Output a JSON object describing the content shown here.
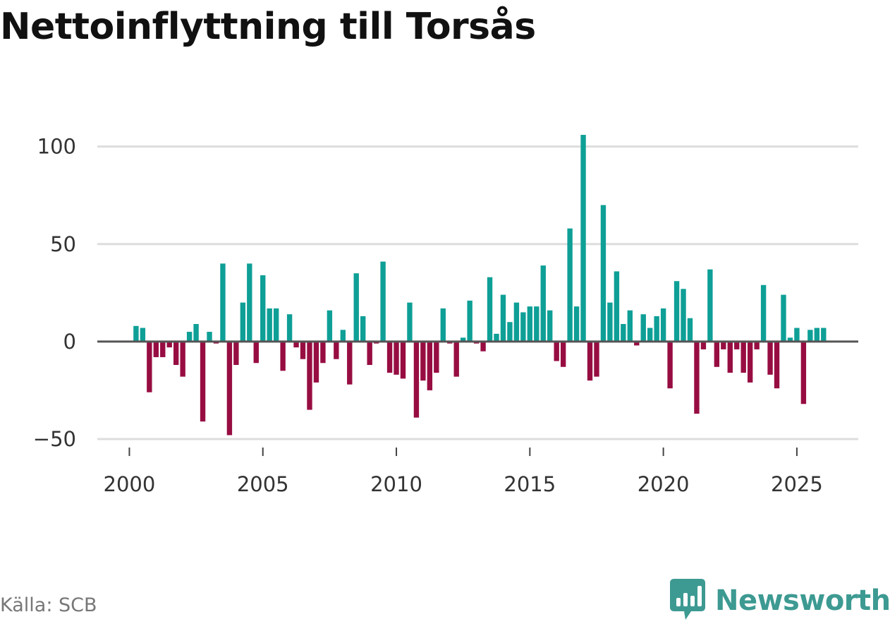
{
  "title": "Nettoinflyttning till Torsås",
  "source": "Källa: SCB",
  "brand": {
    "name": "Newsworthy",
    "icon": "newsworthy-logo-icon"
  },
  "colors": {
    "positive": "#0e9f96",
    "negative": "#970d42",
    "grid": "#dddddd",
    "zero": "#555555",
    "brand": "#3d9a92"
  },
  "chart_data": {
    "type": "bar",
    "title": "Nettoinflyttning till Torsås",
    "xlabel": "",
    "ylabel": "",
    "x_ticks": [
      2000,
      2005,
      2010,
      2015,
      2020,
      2025
    ],
    "y_ticks": [
      100,
      50,
      0,
      -50
    ],
    "y_tick_labels": [
      "100",
      "50",
      "0",
      "−50"
    ],
    "ylim": [
      -50,
      110
    ],
    "xlim": [
      1998.8,
      2027.3
    ],
    "x_start": 2000.25,
    "x_step": 0.25,
    "grid": true,
    "values": [
      8,
      7,
      -26,
      -8,
      -8,
      -3,
      -12,
      -18,
      5,
      9,
      -41,
      5,
      -1,
      40,
      -48,
      -12,
      20,
      40,
      -11,
      34,
      17,
      17,
      -15,
      14,
      -3,
      -9,
      -35,
      -21,
      -11,
      16,
      -9,
      6,
      -22,
      35,
      13,
      -12,
      -1,
      41,
      -16,
      -17,
      -19,
      20,
      -39,
      -20,
      -25,
      -16,
      17,
      -1,
      -18,
      2,
      21,
      -1,
      -5,
      33,
      4,
      24,
      10,
      20,
      15,
      18,
      18,
      39,
      16,
      -10,
      -13,
      58,
      18,
      106,
      -20,
      -18,
      70,
      20,
      36,
      9,
      16,
      -2,
      14,
      7,
      13,
      17,
      -24,
      31,
      27,
      12,
      -37,
      -4,
      37,
      -13,
      -4,
      -16,
      -4,
      -16,
      -21,
      -4,
      29,
      -17,
      -24,
      24,
      2,
      7,
      -32,
      6,
      7,
      7
    ]
  }
}
